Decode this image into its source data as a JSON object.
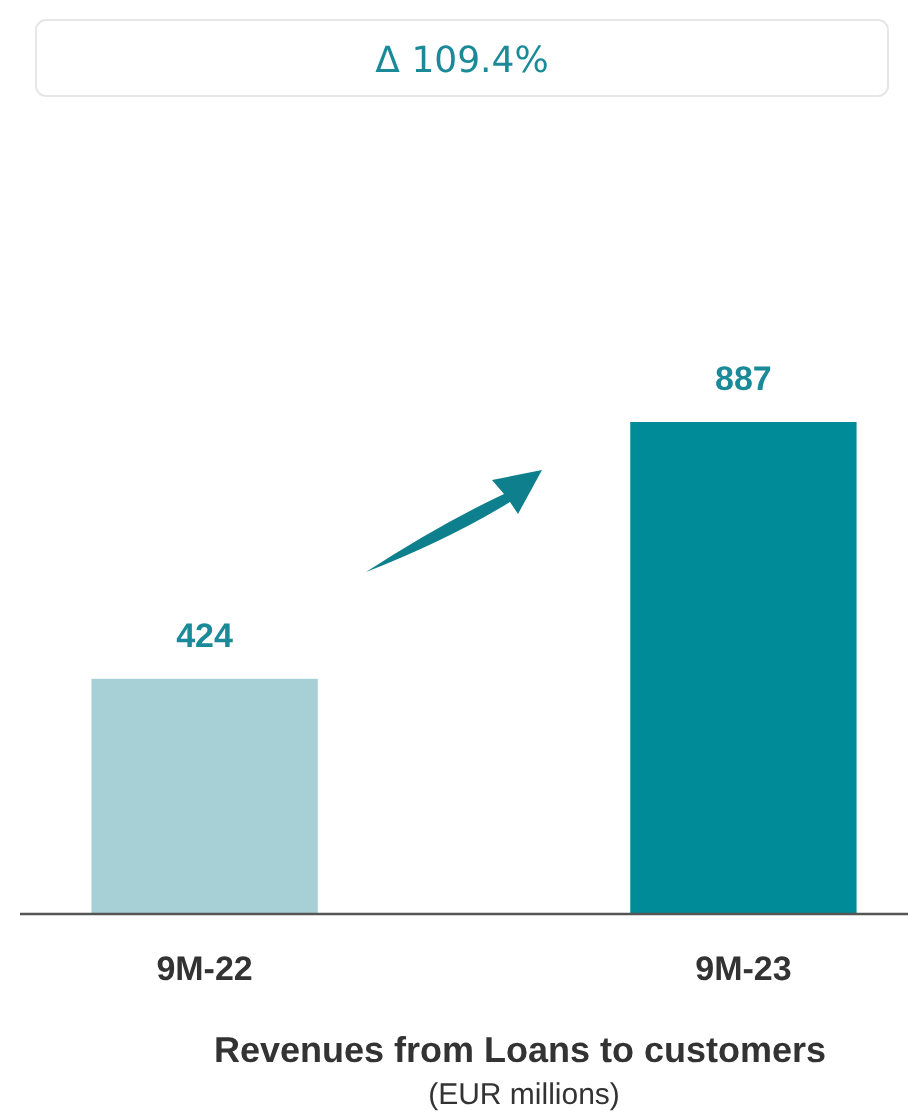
{
  "chart_data": {
    "type": "bar",
    "title": "Revenues from Loans to customers",
    "subtitle": "(EUR millions)",
    "categories": [
      "9M-22",
      "9M-23"
    ],
    "values": [
      424,
      887
    ],
    "colors": [
      "#a6cfd6",
      "#008b99"
    ],
    "data_labels": true,
    "annotations": [
      "Δ 109.4%"
    ]
  }
}
